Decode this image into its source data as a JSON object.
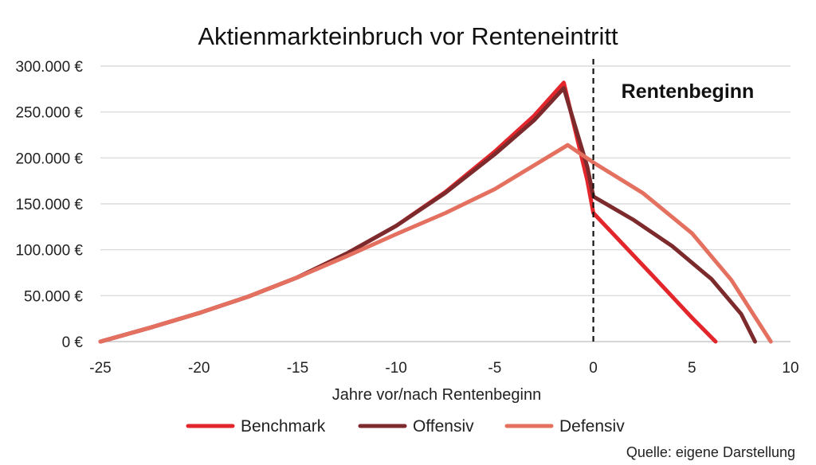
{
  "chart_data": {
    "type": "line",
    "title": "Aktienmarkteinbruch vor Renteneintritt",
    "xlabel": "Jahre vor/nach Rentenbeginn",
    "ylabel": "",
    "xlim": [
      -25,
      10
    ],
    "ylim": [
      0,
      300000
    ],
    "x_ticks": [
      -25,
      -20,
      -15,
      -10,
      -5,
      0,
      5,
      10
    ],
    "x_tick_labels": [
      "-25",
      "-20",
      "-15",
      "-10",
      "-5",
      "0",
      "5",
      "10"
    ],
    "y_ticks": [
      0,
      50000,
      100000,
      150000,
      200000,
      250000,
      300000
    ],
    "y_tick_labels": [
      "0 €",
      "50.000 €",
      "100.000 €",
      "150.000 €",
      "200.000 €",
      "250.000 €",
      "300.000 €"
    ],
    "grid": "horizontal",
    "legend_position": "bottom",
    "annotation": {
      "text": "Rentenbeginn",
      "x": 0,
      "line_style": "dashed"
    },
    "source_note": "Quelle: eigene Darstellung",
    "series": [
      {
        "name": "Benchmark",
        "color": "#e3262b",
        "points": [
          [
            -25,
            0
          ],
          [
            -22.5,
            15000
          ],
          [
            -20,
            31000
          ],
          [
            -17.5,
            49000
          ],
          [
            -15,
            70000
          ],
          [
            -12.5,
            96000
          ],
          [
            -10,
            126000
          ],
          [
            -7.5,
            163000
          ],
          [
            -5,
            207000
          ],
          [
            -3,
            246000
          ],
          [
            -1.5,
            282000
          ],
          [
            -0.3,
            175000
          ],
          [
            0,
            140000
          ],
          [
            3,
            72000
          ],
          [
            5,
            26000
          ],
          [
            6.2,
            0
          ]
        ]
      },
      {
        "name": "Offensiv",
        "color": "#7d2a2d",
        "points": [
          [
            -25,
            0
          ],
          [
            -22.5,
            15000
          ],
          [
            -20,
            31000
          ],
          [
            -17.5,
            49000
          ],
          [
            -15,
            70000
          ],
          [
            -12.5,
            96000
          ],
          [
            -10,
            126000
          ],
          [
            -7.5,
            162000
          ],
          [
            -5,
            204000
          ],
          [
            -3,
            241000
          ],
          [
            -1.5,
            276000
          ],
          [
            -0.3,
            190000
          ],
          [
            0,
            158000
          ],
          [
            2,
            133000
          ],
          [
            4,
            104000
          ],
          [
            6,
            68000
          ],
          [
            7.5,
            30000
          ],
          [
            8.2,
            0
          ]
        ]
      },
      {
        "name": "Defensiv",
        "color": "#e47060",
        "points": [
          [
            -25,
            0
          ],
          [
            -22.5,
            15000
          ],
          [
            -20,
            31000
          ],
          [
            -17.5,
            49000
          ],
          [
            -15,
            70000
          ],
          [
            -12.5,
            93000
          ],
          [
            -10,
            117000
          ],
          [
            -7.5,
            140000
          ],
          [
            -5,
            166000
          ],
          [
            -3,
            192000
          ],
          [
            -1.3,
            214000
          ],
          [
            0,
            195000
          ],
          [
            2.5,
            162000
          ],
          [
            5,
            118000
          ],
          [
            7,
            67000
          ],
          [
            9,
            0
          ]
        ]
      }
    ]
  }
}
